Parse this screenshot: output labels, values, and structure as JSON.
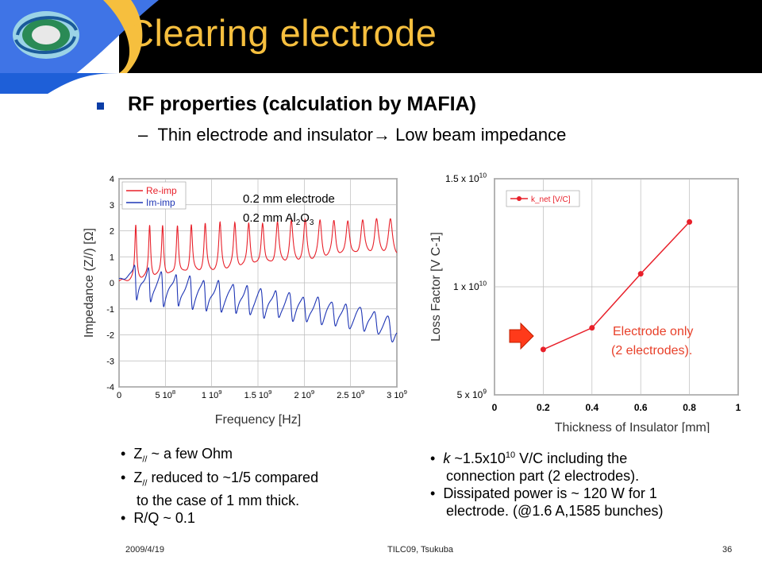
{
  "slide": {
    "title": "Clearing electrode",
    "bullet_main": "RF properties (calculation by MAFIA)",
    "sub_bullet": "Thin electrode and insulator",
    "sub_bullet_arrow": "→",
    "sub_bullet_tail": "Low beam impedance",
    "colors": {
      "title": "#f6bf3e",
      "header_bg": "#000000",
      "accent_blue": "#1e5fd8",
      "accent_yellow": "#f6bf3e",
      "bullet": "#0b3da6"
    }
  },
  "left_chart": {
    "note_line1": "0.2 mm electrode",
    "note_line2_pre": "0.2 mm Al",
    "note_line2_sub1": "2",
    "note_line2_mid": "O",
    "note_line2_sub2": "3"
  },
  "right_chart": {
    "annotation_line1": "Electrode only",
    "annotation_line2": "(2 electrodes)."
  },
  "chart_data": [
    {
      "type": "line",
      "xlabel": "Frequency [Hz]",
      "ylabel": "Impedance (Z//) [Ω]",
      "xlim": [
        0,
        3000000000.0
      ],
      "ylim": [
        -4,
        4
      ],
      "x_ticks": [
        {
          "v": 0,
          "label": "0"
        },
        {
          "v": 500000000.0,
          "label": "5 10",
          "exp": "8"
        },
        {
          "v": 1000000000.0,
          "label": "1 10",
          "exp": "9"
        },
        {
          "v": 1500000000.0,
          "label": "1.5 10",
          "exp": "9"
        },
        {
          "v": 2000000000.0,
          "label": "2 10",
          "exp": "9"
        },
        {
          "v": 2500000000.0,
          "label": "2.5 10",
          "exp": "9"
        },
        {
          "v": 3000000000.0,
          "label": "3 10",
          "exp": "9"
        }
      ],
      "y_ticks": [
        -4,
        -3,
        -2,
        -1,
        0,
        1,
        2,
        3,
        4
      ],
      "grid": true,
      "legend_position": "top-left",
      "series": [
        {
          "name": "Re-imp",
          "color": "#e8202a",
          "resonances_hz": [
            180000000.0,
            330000000.0,
            470000000.0,
            630000000.0,
            780000000.0,
            930000000.0,
            1090000000.0,
            1250000000.0,
            1400000000.0,
            1550000000.0,
            1710000000.0,
            1860000000.0,
            2010000000.0,
            2170000000.0,
            2320000000.0,
            2470000000.0,
            2630000000.0,
            2780000000.0,
            2930000000.0
          ],
          "peak": 2.1,
          "trend_start": 0.05,
          "trend_end": 1.0
        },
        {
          "name": "Im-imp",
          "color": "#1f36b5",
          "resonances_hz": [
            180000000.0,
            330000000.0,
            470000000.0,
            630000000.0,
            780000000.0,
            930000000.0,
            1090000000.0,
            1250000000.0,
            1400000000.0,
            1550000000.0,
            1710000000.0,
            1860000000.0,
            2010000000.0,
            2170000000.0,
            2320000000.0,
            2470000000.0,
            2630000000.0,
            2780000000.0,
            2930000000.0
          ],
          "amp": 1.4,
          "trend_start": -0.35,
          "trend_end": -1.2
        }
      ]
    },
    {
      "type": "line",
      "xlabel": "Thickness of Insulator [mm]",
      "ylabel": "Loss Factor [V C-1]",
      "xlim": [
        0,
        1
      ],
      "ylim": [
        5000000000.0,
        15000000000.0
      ],
      "x_ticks": [
        "0",
        "0.2",
        "0.4",
        "0.6",
        "0.8",
        "1"
      ],
      "y_ticks": [
        {
          "v": 5000000000.0,
          "label": "5 x 10",
          "exp": "9"
        },
        {
          "v": 10000000000.0,
          "label": "1 x 10",
          "exp": "10"
        },
        {
          "v": 15000000000.0,
          "label": "1.5 x 10",
          "exp": "10"
        }
      ],
      "grid": true,
      "legend_position": "top-left",
      "series": [
        {
          "name": "k_net [V/C]",
          "color": "#e8202a",
          "x": [
            0.2,
            0.4,
            0.6,
            0.8
          ],
          "y": [
            7100000000.0,
            8100000000.0,
            10600000000.0,
            13000000000.0
          ]
        }
      ]
    }
  ],
  "left_bullets": [
    {
      "pre": "Z",
      "sub": "//",
      "post": " ~ a few Ohm"
    },
    {
      "pre": "Z",
      "sub": "//",
      "post": " reduced to ~1/5 compared"
    },
    {
      "continuation": "to the case of 1 mm thick."
    },
    {
      "pre": "R/Q ~ 0.1",
      "sub": "",
      "post": ""
    }
  ],
  "right_bullets": {
    "b1_k": "k",
    "b1_mid": " ~1.5x10",
    "b1_exp": "10",
    "b1_tail": " V/C including the",
    "b1_line2": "connection part (2 electrodes).",
    "b2_line1": "Dissipated power is ~ 120 W for 1",
    "b2_line2": "electrode. (@1.6 A,1585 bunches)"
  },
  "footer": {
    "date": "2009/4/19",
    "center": "TILC09,  Tsukuba",
    "page": "36"
  }
}
